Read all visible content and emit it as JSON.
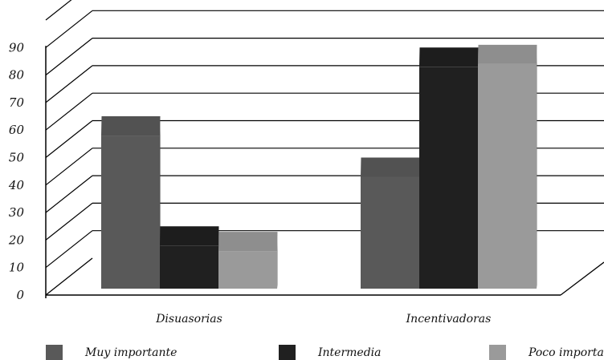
{
  "chart_data": {
    "type": "bar",
    "style": "3d-clustered-column",
    "categories": [
      "Disuasorias",
      "Incentivadoras"
    ],
    "series": [
      {
        "name": "Muy importante",
        "values": [
          58,
          43
        ],
        "color": "#595959"
      },
      {
        "name": "Intermedia",
        "values": [
          18,
          83
        ],
        "color": "#202020"
      },
      {
        "name": "Poco importante",
        "values": [
          16,
          84
        ],
        "color": "#9a9a9a"
      }
    ],
    "yticks": [
      0,
      10,
      20,
      30,
      40,
      50,
      60,
      70,
      80,
      90
    ],
    "ylim": [
      0,
      100
    ],
    "title": "",
    "xlabel": "",
    "ylabel": "",
    "grid": true,
    "legend": "bottom"
  }
}
